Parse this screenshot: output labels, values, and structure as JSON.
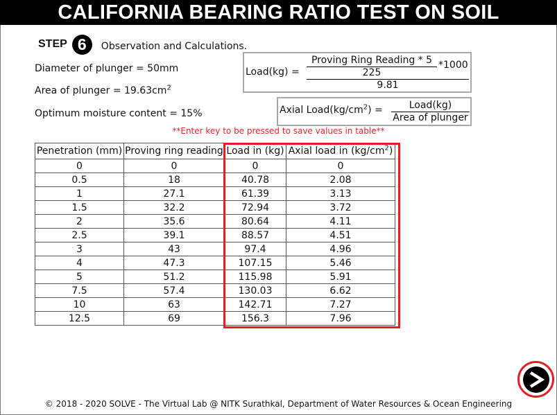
{
  "header": {
    "title": "CALIFORNIA BEARING RATIO TEST ON SOIL"
  },
  "step": {
    "label": "STEP",
    "number": "6",
    "description": "Observation and Calculations."
  },
  "params": {
    "diameter": "Diameter of plunger = 50mm",
    "area": "Area of plunger = 19.63cm",
    "area_exp": "2",
    "omc": "Optimum moisture content = 15%"
  },
  "formula_load": {
    "lhs": "Load(kg) =",
    "numerator": "Proving Ring Reading * 5",
    "denominator": "225",
    "multiplier": "*1000",
    "divisor": "9.81"
  },
  "formula_axial": {
    "lhs": "Axial Load(kg/cm",
    "lhs_exp": "2",
    "lhs_end": ") =",
    "numerator": "Load(kg)",
    "denominator": "Area of plunger"
  },
  "note": "**Enter key to be pressed to save values in table**",
  "table": {
    "headers": [
      "Penetration (mm)",
      "Proving ring reading",
      "Load in (kg)",
      "Axial load in (kg/cm",
      "2",
      ")"
    ],
    "rows": [
      [
        "0",
        "0",
        "0",
        "0"
      ],
      [
        "0.5",
        "18",
        "40.78",
        "2.08"
      ],
      [
        "1",
        "27.1",
        "61.39",
        "3.13"
      ],
      [
        "1.5",
        "32.2",
        "72.94",
        "3.72"
      ],
      [
        "2",
        "35.6",
        "80.64",
        "4.11"
      ],
      [
        "2.5",
        "39.1",
        "88.57",
        "4.51"
      ],
      [
        "3",
        "43",
        "97.4",
        "4.96"
      ],
      [
        "4",
        "47.3",
        "107.15",
        "5.46"
      ],
      [
        "5",
        "51.2",
        "115.98",
        "5.91"
      ],
      [
        "7.5",
        "57.4",
        "130.03",
        "6.62"
      ],
      [
        "10",
        "63",
        "142.71",
        "7.27"
      ],
      [
        "12.5",
        "69",
        "156.3",
        "7.96"
      ]
    ]
  },
  "footer": "© 2018 - 2020 SOLVE - The Virtual Lab @ NITK Surathkal, Department of Water Resources & Ocean Engineering",
  "colors": {
    "header_bg": "#000000",
    "accent_red": "#e31e24",
    "note_red": "#e8222a"
  },
  "icons": {
    "next": "next-arrow-icon"
  }
}
